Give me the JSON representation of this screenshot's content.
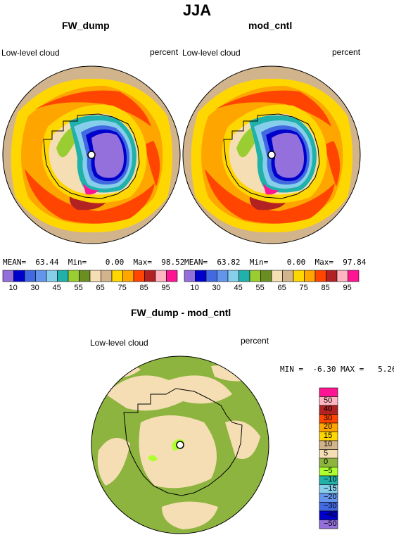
{
  "title": "JJA",
  "panels": [
    {
      "title": "FW_dump",
      "left_label": "Low-level cloud",
      "right_label": "percent",
      "stats": {
        "mean_label": "MEAN=",
        "mean": "63.44",
        "min_label": "Min=",
        "min": "0.00",
        "max_label": "Max=",
        "max": "98.52"
      }
    },
    {
      "title": "mod_cntl",
      "left_label": "Low-level cloud",
      "right_label": "percent",
      "stats": {
        "mean_label": "MEAN=",
        "mean": "63.82",
        "min_label": "Min=",
        "min": "0.00",
        "max_label": "Max=",
        "max": "97.84"
      }
    }
  ],
  "diff_panel": {
    "title": "FW_dump - mod_cntl",
    "left_label": "Low-level cloud",
    "right_label": "percent",
    "min_label": "MIN =",
    "min": "-6.30",
    "max_label": "MAX =",
    "max": "5.26"
  },
  "top_colorbar": {
    "colors": [
      "#9370db",
      "#0000cd",
      "#4169e1",
      "#6495ed",
      "#87ceeb",
      "#20b2aa",
      "#9acd32",
      "#6b8e23",
      "#f5deb3",
      "#d2b48c",
      "#ffd700",
      "#ffa500",
      "#ff4500",
      "#b22222",
      "#ffb6c1",
      "#ff1493"
    ],
    "tick_labels": [
      "10",
      "30",
      "45",
      "55",
      "65",
      "75",
      "85",
      "95"
    ]
  },
  "diff_colorbar": {
    "colors": [
      "#ff1493",
      "#ffb6c1",
      "#b22222",
      "#ff4500",
      "#ffa500",
      "#ffd700",
      "#d2b48c",
      "#f5deb3",
      "#8db43e",
      "#adff2f",
      "#20b2aa",
      "#87ceeb",
      "#6495ed",
      "#4169e1",
      "#0000cd",
      "#9370db"
    ],
    "tick_labels": [
      "50",
      "40",
      "30",
      "20",
      "15",
      "10",
      "5",
      "0",
      "−5",
      "−10",
      "−15",
      "−20",
      "−30",
      "−40",
      "−50"
    ]
  }
}
